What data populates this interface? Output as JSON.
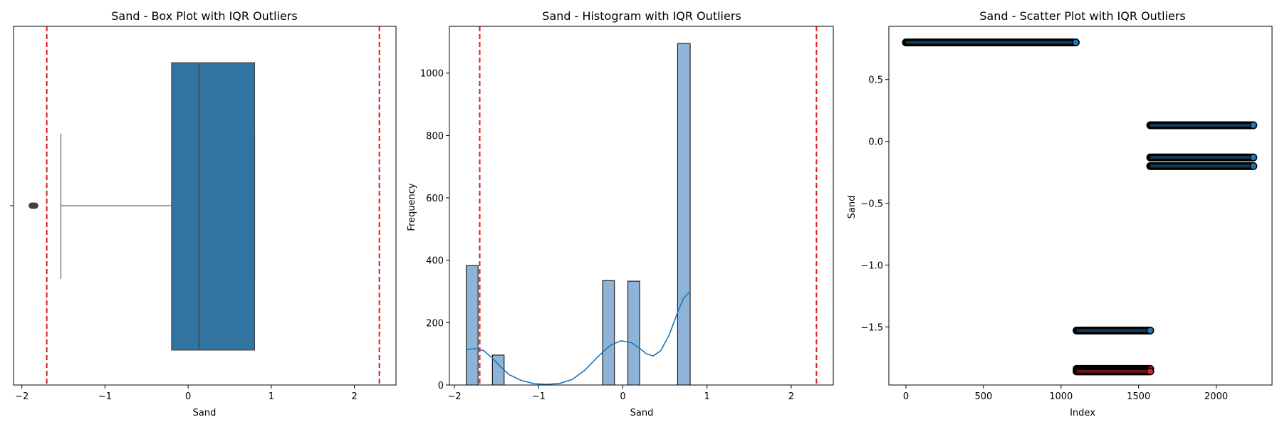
{
  "charts": [
    {
      "type": "box",
      "title": "Sand - Box Plot with IQR Outliers",
      "xlabel": "Sand",
      "ylabel": "",
      "xlim": [
        -2.1,
        2.5
      ],
      "xticks": [
        -2,
        -1,
        0,
        1,
        2
      ],
      "box": {
        "whisker_low": -1.53,
        "q1": -0.2,
        "median": 0.13,
        "q3": 0.8,
        "whisker_high": 0.8,
        "fill": "#3274a1"
      },
      "outliers": [
        -1.84,
        -1.86,
        -1.88
      ],
      "iqr_bounds": [
        -1.7,
        2.3
      ],
      "bound_color": "#e41a1c"
    },
    {
      "type": "histogram",
      "title": "Sand - Histogram with IQR Outliers",
      "xlabel": "Sand",
      "ylabel": "Frequency",
      "xlim": [
        -2.06,
        2.5
      ],
      "ylim": [
        0,
        1150
      ],
      "xticks": [
        -2,
        -1,
        0,
        1,
        2
      ],
      "yticks": [
        0,
        200,
        400,
        600,
        800,
        1000
      ],
      "bins": [
        {
          "x0": -1.86,
          "x1": -1.72,
          "count": 383
        },
        {
          "x0": -1.55,
          "x1": -1.41,
          "count": 96
        },
        {
          "x0": -0.24,
          "x1": -0.1,
          "count": 335
        },
        {
          "x0": 0.06,
          "x1": 0.2,
          "count": 333
        },
        {
          "x0": 0.65,
          "x1": 0.8,
          "count": 1095
        }
      ],
      "kde": [
        [
          -1.86,
          113
        ],
        [
          -1.75,
          117
        ],
        [
          -1.65,
          110
        ],
        [
          -1.55,
          86
        ],
        [
          -1.45,
          58
        ],
        [
          -1.35,
          33
        ],
        [
          -1.2,
          14
        ],
        [
          -1.05,
          4
        ],
        [
          -0.9,
          2
        ],
        [
          -0.75,
          5
        ],
        [
          -0.6,
          18
        ],
        [
          -0.45,
          48
        ],
        [
          -0.3,
          90
        ],
        [
          -0.15,
          127
        ],
        [
          -0.02,
          142
        ],
        [
          0.1,
          136
        ],
        [
          0.2,
          118
        ],
        [
          0.28,
          100
        ],
        [
          0.36,
          93
        ],
        [
          0.45,
          110
        ],
        [
          0.55,
          160
        ],
        [
          0.65,
          232
        ],
        [
          0.72,
          278
        ],
        [
          0.8,
          300
        ]
      ],
      "iqr_bounds": [
        -1.7,
        2.3
      ],
      "bar_color": "#8db3d7",
      "kde_color": "#1f77b4",
      "bound_color": "#e41a1c"
    },
    {
      "type": "scatter",
      "title": "Sand - Scatter Plot with IQR Outliers",
      "xlabel": "Index",
      "ylabel": "Sand",
      "xlim": [
        -110,
        2360
      ],
      "ylim": [
        -1.97,
        0.93
      ],
      "xticks": [
        0,
        500,
        1000,
        1500,
        2000
      ],
      "yticks": [
        0.5,
        0.0,
        -0.5,
        -1.0,
        -1.5
      ],
      "segments": [
        {
          "x_start": 0,
          "x_end": 1095,
          "y": 0.8,
          "color": "#1f77b4"
        },
        {
          "x_start": 1100,
          "x_end": 1575,
          "y": -1.53,
          "color": "#1f77b4"
        },
        {
          "x_start": 1100,
          "x_end": 1575,
          "y": -1.84,
          "color": "#d62728"
        },
        {
          "x_start": 1100,
          "x_end": 1575,
          "y": -1.86,
          "color": "#d62728"
        },
        {
          "x_start": 1575,
          "x_end": 2240,
          "y": 0.13,
          "color": "#1f77b4"
        },
        {
          "x_start": 1575,
          "x_end": 2240,
          "y": -0.13,
          "color": "#1f77b4"
        },
        {
          "x_start": 1575,
          "x_end": 2240,
          "y": -0.2,
          "color": "#1f77b4"
        }
      ]
    }
  ]
}
